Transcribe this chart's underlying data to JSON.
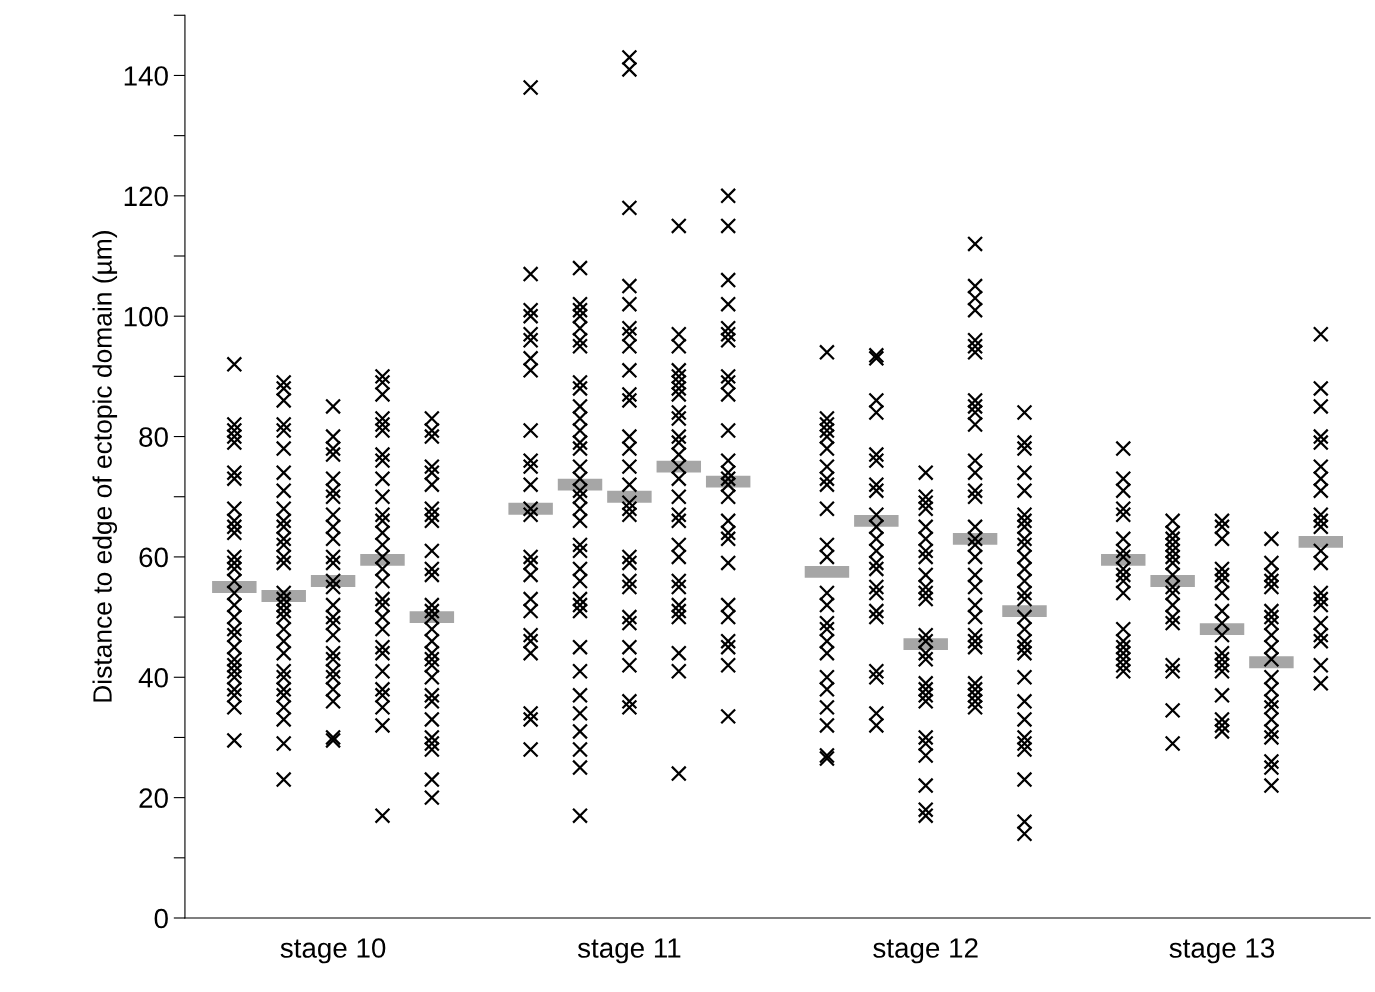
{
  "chart_data": {
    "type": "scatter",
    "ylabel": "Distance to edge of ectopic domain (µm)",
    "categories": [
      null,
      null,
      "stage 10",
      null,
      null,
      null,
      null,
      null,
      "stage 11",
      null,
      null,
      null,
      null,
      null,
      "stage 12",
      null,
      null,
      null,
      null,
      null,
      "stage 13",
      null,
      null
    ],
    "ylim": [
      0,
      150
    ],
    "yticks": [
      0,
      {
        "value": 10,
        "label": null
      },
      20,
      {
        "value": 30,
        "label": null
      },
      40,
      {
        "value": 50,
        "label": null
      },
      60,
      {
        "value": 70,
        "label": null
      },
      80,
      {
        "value": 90,
        "label": null
      },
      100,
      {
        "value": 110,
        "label": null
      },
      120,
      {
        "value": 130,
        "label": null
      },
      140,
      {
        "value": 150,
        "label": null
      }
    ],
    "grid": false,
    "series": [
      {
        "color": "#000000",
        "marker": "cross",
        "values": [
          92,
          89,
          85,
          90,
          83,
          null,
          138,
          108,
          143,
          115,
          120,
          null,
          94,
          93.5,
          74,
          112,
          84,
          null,
          78,
          66,
          66,
          63,
          97
        ]
      },
      {
        "color": "#000000",
        "marker": "cross",
        "values": [
          82,
          88,
          80,
          89,
          81,
          null,
          107,
          102,
          141,
          97,
          115,
          null,
          83,
          93,
          70,
          105,
          79,
          null,
          73,
          64,
          65,
          59,
          88
        ]
      },
      {
        "color": "#000000",
        "marker": "cross",
        "values": [
          81,
          86,
          78,
          87,
          80,
          null,
          101,
          101,
          118,
          95,
          106,
          null,
          82,
          86,
          69,
          103,
          78,
          null,
          71,
          63,
          63,
          57,
          85
        ]
      },
      {
        "color": "#000000",
        "marker": "cross",
        "values": [
          80,
          82,
          77,
          83,
          75,
          null,
          100,
          100,
          105,
          91,
          102,
          null,
          81,
          84,
          68,
          101,
          74,
          null,
          68,
          62,
          58,
          56,
          80
        ]
      },
      {
        "color": "#000000",
        "marker": "cross",
        "values": [
          79,
          81,
          73,
          82,
          74,
          null,
          97,
          98,
          102,
          90,
          98,
          null,
          80,
          77,
          65,
          96,
          71,
          null,
          67,
          61,
          57,
          55,
          79
        ]
      },
      {
        "color": "#000000",
        "marker": "cross",
        "values": [
          74,
          78,
          71,
          81,
          72,
          null,
          96,
          96,
          98,
          89,
          97,
          null,
          78,
          76,
          63,
          95,
          67,
          null,
          63,
          60,
          56,
          51,
          75
        ]
      },
      {
        "color": "#000000",
        "marker": "cross",
        "values": [
          73,
          74,
          70,
          77,
          68,
          null,
          93,
          95,
          97,
          88,
          96,
          null,
          75,
          72,
          61,
          94,
          66,
          null,
          61,
          59,
          54,
          50,
          73
        ]
      },
      {
        "color": "#000000",
        "marker": "cross",
        "values": [
          68,
          71,
          67,
          76,
          67,
          null,
          91,
          89,
          95,
          87,
          90,
          null,
          73,
          71,
          60,
          86,
          65,
          null,
          60,
          57,
          51,
          49,
          71
        ]
      },
      {
        "color": "#000000",
        "marker": "cross",
        "values": [
          66,
          68,
          65,
          73,
          66,
          null,
          81,
          88,
          91,
          84,
          89,
          null,
          72,
          67,
          57,
          85,
          63,
          null,
          58,
          55,
          49,
          47,
          67
        ]
      },
      {
        "color": "#000000",
        "marker": "cross",
        "values": [
          65,
          66,
          63,
          70,
          61,
          null,
          76,
          85,
          87,
          83,
          87,
          null,
          68,
          65,
          55,
          84,
          62,
          null,
          57,
          54,
          47,
          45,
          66
        ]
      },
      {
        "color": "#000000",
        "marker": "cross",
        "values": [
          64,
          65,
          60,
          67,
          58,
          null,
          75,
          83,
          86,
          80,
          81,
          null,
          62,
          63,
          54,
          82,
          60,
          null,
          56,
          52,
          44,
          43,
          65
        ]
      },
      {
        "color": "#000000",
        "marker": "cross",
        "values": [
          60,
          63,
          59,
          66,
          57,
          null,
          72,
          81,
          80,
          79,
          76,
          null,
          60,
          61,
          53,
          76,
          58,
          null,
          54,
          50,
          43,
          40,
          61
        ]
      },
      {
        "color": "#000000",
        "marker": "cross",
        "values": [
          59,
          62,
          56,
          64,
          52,
          null,
          68,
          79,
          78,
          77,
          74,
          null,
          54,
          59,
          47,
          74,
          56,
          null,
          48,
          49,
          42,
          38,
          59
        ]
      },
      {
        "color": "#000000",
        "marker": "cross",
        "values": [
          58,
          60,
          55,
          62,
          51,
          null,
          67,
          78,
          75,
          75,
          73,
          null,
          52,
          58,
          46,
          71,
          54,
          null,
          46,
          42,
          41,
          36,
          54
        ]
      },
      {
        "color": "#000000",
        "marker": "cross",
        "values": [
          56,
          59,
          52,
          60,
          50,
          null,
          60,
          75,
          72,
          73,
          72,
          null,
          49,
          55,
          44,
          70,
          53,
          null,
          45,
          41,
          37,
          35,
          53
        ]
      },
      {
        "color": "#000000",
        "marker": "cross",
        "values": [
          54,
          54,
          50,
          58,
          48,
          null,
          59,
          73,
          69,
          70,
          70,
          null,
          48,
          54,
          43,
          65,
          50,
          null,
          44,
          34.5,
          33,
          33,
          52
        ]
      },
      {
        "color": "#000000",
        "marker": "cross",
        "values": [
          52,
          53,
          49,
          56,
          46,
          null,
          57,
          71,
          68,
          67,
          66,
          null,
          46,
          51,
          39,
          63,
          48,
          null,
          43,
          29,
          32,
          31,
          49
        ]
      },
      {
        "color": "#000000",
        "marker": "cross",
        "values": [
          50,
          52,
          47,
          53,
          44,
          null,
          53,
          70,
          67,
          66,
          64,
          null,
          44,
          50,
          38,
          62,
          46,
          null,
          42,
          null,
          31,
          30,
          47
        ]
      },
      {
        "color": "#000000",
        "marker": "cross",
        "values": [
          48,
          51,
          44,
          52,
          43,
          null,
          51,
          68,
          60,
          62,
          63,
          null,
          40,
          41,
          37,
          60,
          45,
          null,
          41,
          null,
          null,
          26,
          46
        ]
      },
      {
        "color": "#000000",
        "marker": "cross",
        "values": [
          47,
          50,
          43,
          50,
          42,
          null,
          47,
          66,
          59,
          60,
          59,
          null,
          38,
          40,
          36,
          57,
          44,
          null,
          null,
          null,
          null,
          25,
          42
        ]
      },
      {
        "color": "#000000",
        "marker": "cross",
        "values": [
          45,
          48,
          41,
          48,
          40,
          null,
          46,
          62,
          56,
          56,
          52,
          null,
          35,
          34,
          30,
          55,
          40,
          null,
          null,
          null,
          null,
          22,
          39
        ]
      },
      {
        "color": "#000000",
        "marker": "cross",
        "values": [
          43,
          46,
          40,
          45,
          37,
          null,
          44,
          61,
          55,
          55,
          50,
          null,
          32,
          32,
          29,
          52,
          36,
          null,
          null,
          null,
          null,
          null,
          null
        ]
      },
      {
        "color": "#000000",
        "marker": "cross",
        "values": [
          42,
          44,
          38,
          44,
          36,
          null,
          34,
          58,
          50,
          52,
          46,
          null,
          27,
          null,
          27,
          50,
          33,
          null,
          null,
          null,
          null,
          null,
          null
        ]
      },
      {
        "color": "#000000",
        "marker": "cross",
        "values": [
          41,
          41,
          36,
          41,
          33,
          null,
          33,
          56,
          49,
          51,
          45,
          null,
          26.5,
          null,
          22,
          47,
          30,
          null,
          null,
          null,
          null,
          null,
          null
        ]
      },
      {
        "color": "#000000",
        "marker": "cross",
        "values": [
          40,
          40,
          30,
          38,
          30,
          null,
          28,
          53,
          45,
          50,
          42,
          null,
          null,
          null,
          18,
          46,
          29,
          null,
          null,
          null,
          null,
          null,
          null
        ]
      },
      {
        "color": "#000000",
        "marker": "cross",
        "values": [
          38,
          38,
          29.5,
          37,
          29,
          null,
          null,
          52,
          42,
          44,
          33.5,
          null,
          null,
          null,
          17,
          45,
          28,
          null,
          null,
          null,
          null,
          null,
          null
        ]
      },
      {
        "color": "#000000",
        "marker": "cross",
        "values": [
          37,
          37,
          null,
          35,
          28,
          null,
          null,
          51,
          36,
          41,
          null,
          null,
          null,
          null,
          null,
          39,
          23,
          null,
          null,
          null,
          null,
          null,
          null
        ]
      },
      {
        "color": "#000000",
        "marker": "cross",
        "values": [
          35,
          35,
          null,
          32,
          23,
          null,
          null,
          45,
          35,
          24,
          null,
          null,
          null,
          null,
          null,
          38,
          16,
          null,
          null,
          null,
          null,
          null,
          null
        ]
      },
      {
        "color": "#000000",
        "marker": "cross",
        "values": [
          29.5,
          33,
          null,
          17,
          20,
          null,
          null,
          41,
          null,
          null,
          null,
          null,
          null,
          null,
          null,
          37,
          14,
          null,
          null,
          null,
          null,
          null,
          null
        ]
      },
      {
        "color": "#000000",
        "marker": "cross",
        "values": [
          null,
          29,
          null,
          null,
          null,
          null,
          null,
          37,
          null,
          null,
          null,
          null,
          null,
          null,
          null,
          36,
          null,
          null,
          null,
          null,
          null,
          null,
          null
        ]
      },
      {
        "color": "#000000",
        "marker": "cross",
        "values": [
          null,
          23,
          null,
          null,
          null,
          null,
          null,
          34,
          null,
          null,
          null,
          null,
          null,
          null,
          null,
          35,
          null,
          null,
          null,
          null,
          null,
          null,
          null
        ]
      },
      {
        "color": "#000000",
        "marker": "cross",
        "values": [
          null,
          null,
          null,
          null,
          null,
          null,
          null,
          31,
          null,
          null,
          null,
          null,
          null,
          null,
          null,
          null,
          null,
          null,
          null,
          null,
          null,
          null,
          null
        ]
      },
      {
        "color": "#000000",
        "marker": "cross",
        "values": [
          null,
          null,
          null,
          null,
          null,
          null,
          null,
          28,
          null,
          null,
          null,
          null,
          null,
          null,
          null,
          null,
          null,
          null,
          null,
          null,
          null,
          null,
          null
        ]
      },
      {
        "color": "#000000",
        "marker": "cross",
        "values": [
          null,
          null,
          null,
          null,
          null,
          null,
          null,
          25,
          null,
          null,
          null,
          null,
          null,
          null,
          null,
          null,
          null,
          null,
          null,
          null,
          null,
          null,
          null
        ]
      },
      {
        "color": "#000000",
        "marker": "cross",
        "values": [
          null,
          null,
          null,
          null,
          null,
          null,
          null,
          17,
          null,
          null,
          null,
          null,
          null,
          null,
          null,
          null,
          null,
          null,
          null,
          null,
          null,
          null,
          null
        ]
      },
      {
        "type": "bar",
        "color": "#a6a6a6",
        "base": [
          55,
          53.5,
          56,
          59.5,
          50,
          null,
          68,
          72,
          70,
          75,
          72.5,
          null,
          57.5,
          66,
          45.5,
          63,
          51,
          null,
          59.5,
          56,
          48,
          42.5,
          62.5
        ],
        "values": [
          0,
          0,
          0,
          0,
          0,
          null,
          0,
          0,
          0,
          0,
          0,
          null,
          0,
          0,
          0,
          0,
          0,
          null,
          0,
          0,
          0,
          0,
          0
        ]
      }
    ]
  }
}
